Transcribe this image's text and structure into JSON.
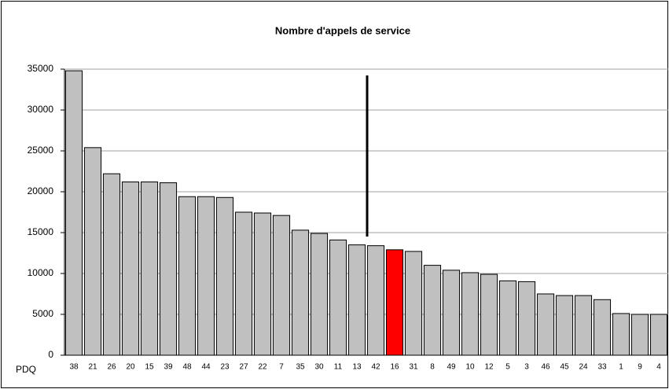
{
  "chart_data": {
    "type": "bar",
    "title": "Nombre d'appels de service",
    "x_label": "PDQ",
    "categories": [
      "38",
      "21",
      "26",
      "20",
      "15",
      "39",
      "48",
      "44",
      "23",
      "27",
      "22",
      "7",
      "35",
      "30",
      "11",
      "13",
      "42",
      "16",
      "31",
      "8",
      "49",
      "10",
      "12",
      "5",
      "3",
      "46",
      "45",
      "24",
      "33",
      "1",
      "9",
      "4"
    ],
    "values": [
      34800,
      25400,
      22200,
      21200,
      21200,
      21100,
      19400,
      19400,
      19300,
      17500,
      17400,
      17100,
      15300,
      14900,
      14100,
      13500,
      13400,
      12900,
      12700,
      11000,
      10400,
      10100,
      9900,
      9100,
      9000,
      7500,
      7300,
      7300,
      6800,
      5100,
      5000,
      5000
    ],
    "colors": [
      "#c0c0c0",
      "#c0c0c0",
      "#c0c0c0",
      "#c0c0c0",
      "#c0c0c0",
      "#c0c0c0",
      "#c0c0c0",
      "#c0c0c0",
      "#c0c0c0",
      "#c0c0c0",
      "#c0c0c0",
      "#c0c0c0",
      "#c0c0c0",
      "#c0c0c0",
      "#c0c0c0",
      "#c0c0c0",
      "#c0c0c0",
      "#ff0000",
      "#c0c0c0",
      "#c0c0c0",
      "#c0c0c0",
      "#c0c0c0",
      "#c0c0c0",
      "#c0c0c0",
      "#c0c0c0",
      "#c0c0c0",
      "#c0c0c0",
      "#c0c0c0",
      "#c0c0c0",
      "#c0c0c0",
      "#c0c0c0",
      "#c0c0c0"
    ],
    "ylim": [
      0,
      35000
    ],
    "yticks": [
      0,
      5000,
      10000,
      15000,
      20000,
      25000,
      30000,
      35000
    ],
    "grid": true
  }
}
